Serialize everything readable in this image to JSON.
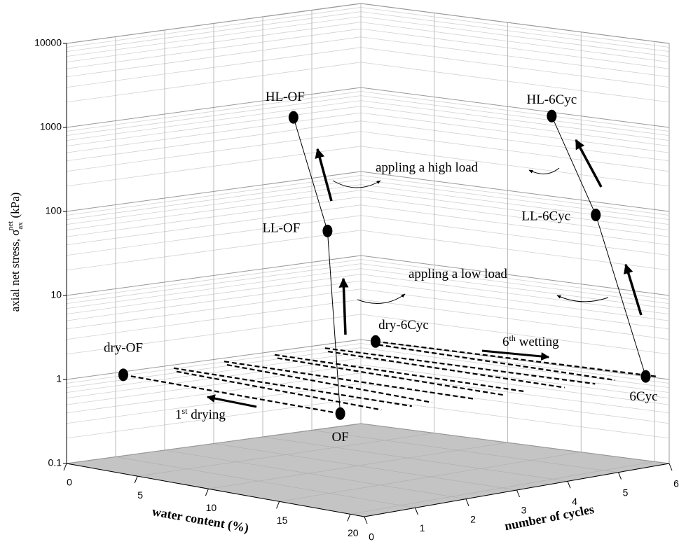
{
  "chart_data": {
    "type": "scatter3d",
    "y_title": [
      "axial net stress, σ",
      "ax",
      "net",
      " (kPa)"
    ],
    "x_title": "water content (%)",
    "z_title": "number of cycles",
    "xlim": [
      0,
      21
    ],
    "xticks": [
      0,
      5,
      10,
      15,
      20
    ],
    "zlim": [
      0,
      6
    ],
    "zticks": [
      0,
      1,
      2,
      3,
      4,
      5,
      6
    ],
    "ylim": [
      0.1,
      10000
    ],
    "yticks": [
      0.1,
      1,
      10,
      100,
      1000,
      10000
    ],
    "log_scale": true,
    "grid": true,
    "color": "#000000",
    "points": [
      {
        "label": "dry-OF",
        "x": 4,
        "z": 0,
        "y": 1.5
      },
      {
        "label": "OF",
        "x": 19.3,
        "z": 0,
        "y": 1.5
      },
      {
        "label": "LL-OF",
        "x": 18.4,
        "z": 0,
        "y": 210
      },
      {
        "label": "HL-OF",
        "x": 16,
        "z": 0,
        "y": 4000
      },
      {
        "label": "dry-6Cyc",
        "x": 1,
        "z": 6,
        "y": 1
      },
      {
        "label": "6Cyc",
        "x": 19.4,
        "z": 6,
        "y": 1
      },
      {
        "label": "LL-6Cyc",
        "x": 16,
        "z": 6,
        "y": 70
      },
      {
        "label": "HL-6Cyc",
        "x": 13,
        "z": 6,
        "y": 900
      }
    ],
    "annotations": [
      {
        "text": [
          "appling a high load"
        ]
      },
      {
        "text": [
          "appling a low load"
        ]
      },
      {
        "text": [
          "6",
          "th",
          " wetting"
        ]
      },
      {
        "text": [
          "1",
          "st",
          " drying"
        ]
      }
    ]
  }
}
